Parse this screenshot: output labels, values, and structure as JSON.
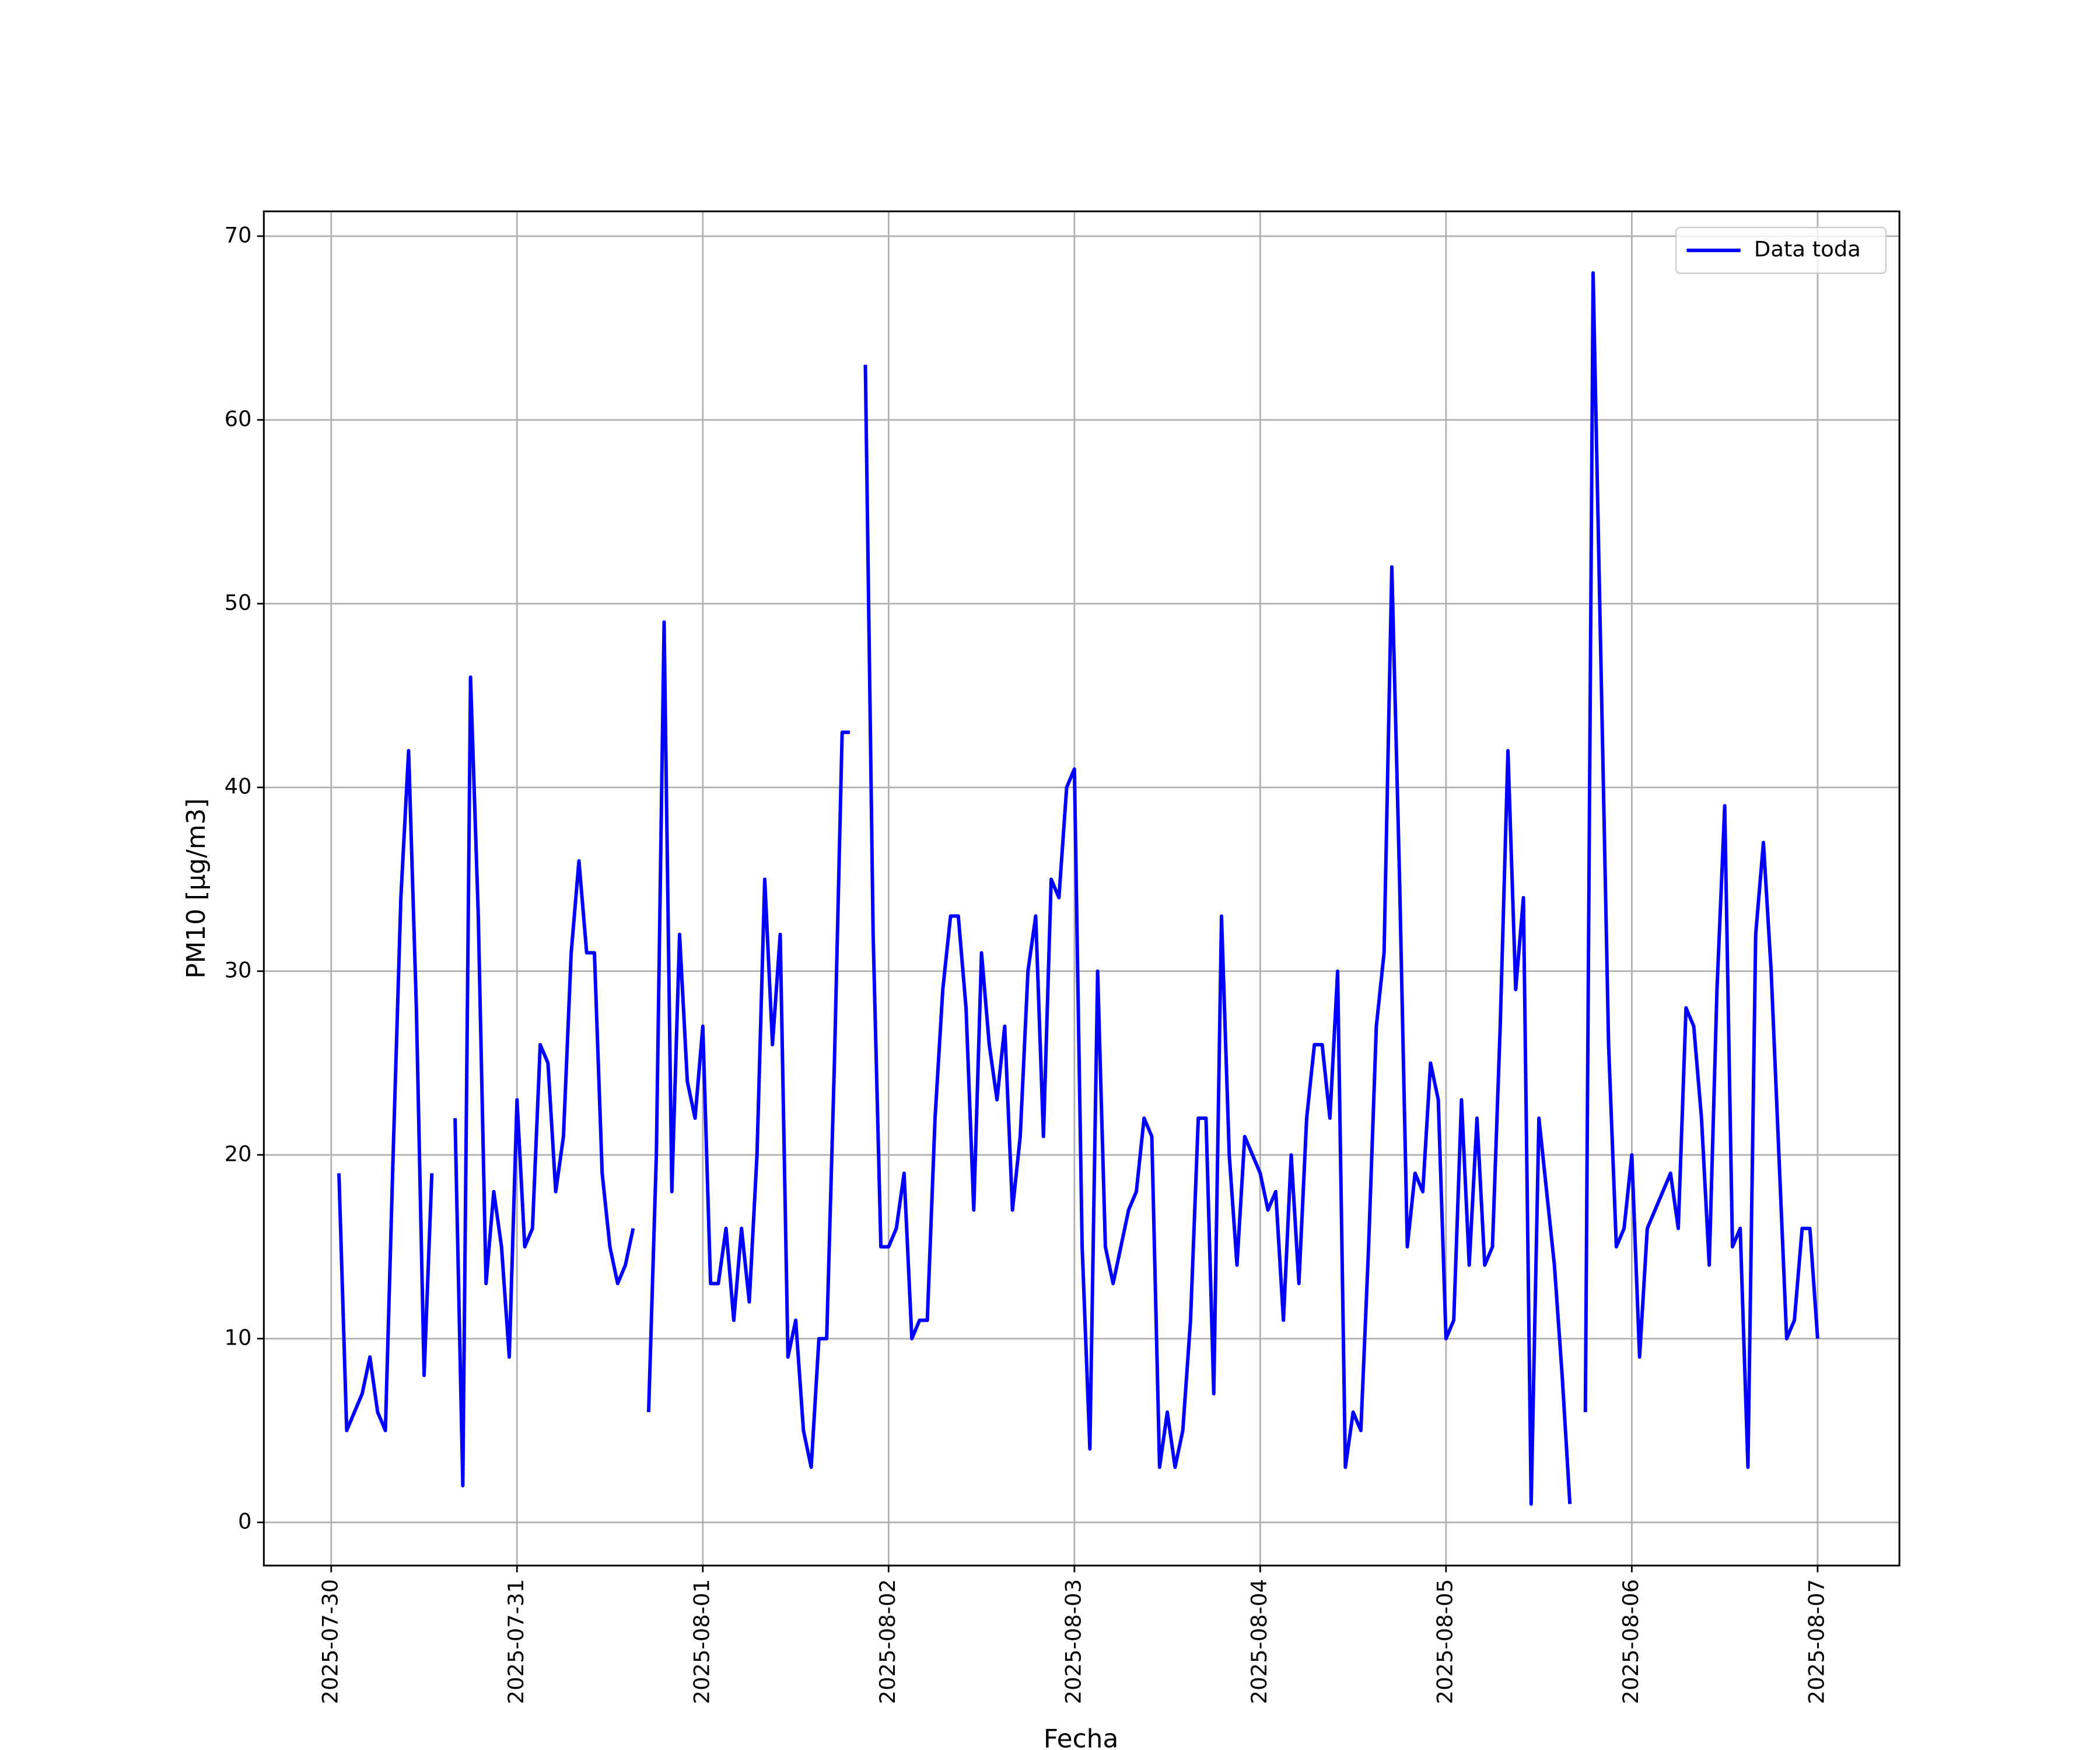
{
  "chart_data": {
    "type": "line",
    "xlabel": "Fecha",
    "ylabel": "PM10 [μg/m3]",
    "x": [
      "2025-07-30T01:00",
      "2025-07-30T02:00",
      "2025-07-30T03:00",
      "2025-07-30T04:00",
      "2025-07-30T05:00",
      "2025-07-30T06:00",
      "2025-07-30T07:00",
      "2025-07-30T08:00",
      "2025-07-30T09:00",
      "2025-07-30T10:00",
      "2025-07-30T11:00",
      "2025-07-30T12:00",
      "2025-07-30T13:00",
      "2025-07-30T14:00",
      "2025-07-30T15:00",
      "2025-07-30T16:00",
      "2025-07-30T17:00",
      "2025-07-30T18:00",
      "2025-07-30T19:00",
      "2025-07-30T20:00",
      "2025-07-30T21:00",
      "2025-07-30T22:00",
      "2025-07-30T23:00",
      "2025-07-31T00:00",
      "2025-07-31T01:00",
      "2025-07-31T02:00",
      "2025-07-31T03:00",
      "2025-07-31T04:00",
      "2025-07-31T05:00",
      "2025-07-31T06:00",
      "2025-07-31T07:00",
      "2025-07-31T08:00",
      "2025-07-31T09:00",
      "2025-07-31T10:00",
      "2025-07-31T11:00",
      "2025-07-31T12:00",
      "2025-07-31T13:00",
      "2025-07-31T14:00",
      "2025-07-31T15:00",
      "2025-07-31T16:00",
      "2025-07-31T17:00",
      "2025-07-31T18:00",
      "2025-07-31T19:00",
      "2025-07-31T20:00",
      "2025-07-31T21:00",
      "2025-07-31T22:00",
      "2025-07-31T23:00",
      "2025-08-01T00:00",
      "2025-08-01T01:00",
      "2025-08-01T02:00",
      "2025-08-01T03:00",
      "2025-08-01T04:00",
      "2025-08-01T05:00",
      "2025-08-01T06:00",
      "2025-08-01T07:00",
      "2025-08-01T08:00",
      "2025-08-01T09:00",
      "2025-08-01T10:00",
      "2025-08-01T11:00",
      "2025-08-01T12:00",
      "2025-08-01T13:00",
      "2025-08-01T14:00",
      "2025-08-01T15:00",
      "2025-08-01T16:00",
      "2025-08-01T17:00",
      "2025-08-01T18:00",
      "2025-08-01T19:00",
      "2025-08-01T20:00",
      "2025-08-01T21:00",
      "2025-08-01T22:00",
      "2025-08-01T23:00",
      "2025-08-02T00:00",
      "2025-08-02T01:00",
      "2025-08-02T02:00",
      "2025-08-02T03:00",
      "2025-08-02T04:00",
      "2025-08-02T05:00",
      "2025-08-02T06:00",
      "2025-08-02T07:00",
      "2025-08-02T08:00",
      "2025-08-02T09:00",
      "2025-08-02T10:00",
      "2025-08-02T11:00",
      "2025-08-02T12:00",
      "2025-08-02T13:00",
      "2025-08-02T14:00",
      "2025-08-02T15:00",
      "2025-08-02T16:00",
      "2025-08-02T17:00",
      "2025-08-02T18:00",
      "2025-08-02T19:00",
      "2025-08-02T20:00",
      "2025-08-02T21:00",
      "2025-08-02T22:00",
      "2025-08-02T23:00",
      "2025-08-03T00:00",
      "2025-08-03T01:00",
      "2025-08-03T02:00",
      "2025-08-03T03:00",
      "2025-08-03T04:00",
      "2025-08-03T05:00",
      "2025-08-03T06:00",
      "2025-08-03T07:00",
      "2025-08-03T08:00",
      "2025-08-03T09:00",
      "2025-08-03T10:00",
      "2025-08-03T11:00",
      "2025-08-03T12:00",
      "2025-08-03T13:00",
      "2025-08-03T14:00",
      "2025-08-03T15:00",
      "2025-08-03T16:00",
      "2025-08-03T17:00",
      "2025-08-03T18:00",
      "2025-08-03T19:00",
      "2025-08-03T20:00",
      "2025-08-03T21:00",
      "2025-08-03T22:00",
      "2025-08-03T23:00",
      "2025-08-04T00:00",
      "2025-08-04T01:00",
      "2025-08-04T02:00",
      "2025-08-04T03:00",
      "2025-08-04T04:00",
      "2025-08-04T05:00",
      "2025-08-04T06:00",
      "2025-08-04T07:00",
      "2025-08-04T08:00",
      "2025-08-04T09:00",
      "2025-08-04T10:00",
      "2025-08-04T11:00",
      "2025-08-04T12:00",
      "2025-08-04T13:00",
      "2025-08-04T14:00",
      "2025-08-04T15:00",
      "2025-08-04T16:00",
      "2025-08-04T17:00",
      "2025-08-04T18:00",
      "2025-08-04T19:00",
      "2025-08-04T20:00",
      "2025-08-04T21:00",
      "2025-08-04T22:00",
      "2025-08-04T23:00",
      "2025-08-05T00:00",
      "2025-08-05T01:00",
      "2025-08-05T02:00",
      "2025-08-05T03:00",
      "2025-08-05T04:00",
      "2025-08-05T05:00",
      "2025-08-05T06:00",
      "2025-08-05T07:00",
      "2025-08-05T08:00",
      "2025-08-05T09:00",
      "2025-08-05T10:00",
      "2025-08-05T11:00",
      "2025-08-05T12:00",
      "2025-08-05T13:00",
      "2025-08-05T14:00",
      "2025-08-05T15:00",
      "2025-08-05T16:00",
      "2025-08-05T17:00",
      "2025-08-05T18:00",
      "2025-08-05T19:00",
      "2025-08-05T20:00",
      "2025-08-05T21:00",
      "2025-08-05T22:00",
      "2025-08-05T23:00",
      "2025-08-06T00:00",
      "2025-08-06T01:00",
      "2025-08-06T02:00",
      "2025-08-06T03:00",
      "2025-08-06T04:00",
      "2025-08-06T05:00",
      "2025-08-06T06:00",
      "2025-08-06T07:00",
      "2025-08-06T08:00",
      "2025-08-06T09:00",
      "2025-08-06T10:00",
      "2025-08-06T11:00",
      "2025-08-06T12:00",
      "2025-08-06T13:00",
      "2025-08-06T14:00",
      "2025-08-06T15:00",
      "2025-08-06T16:00",
      "2025-08-06T17:00",
      "2025-08-06T18:00",
      "2025-08-06T19:00",
      "2025-08-06T20:00",
      "2025-08-06T21:00",
      "2025-08-06T22:00",
      "2025-08-06T23:00",
      "2025-08-07T00:00"
    ],
    "series": [
      {
        "name": "Data toda",
        "color": "#0000ff",
        "values": [
          19,
          5,
          6,
          7,
          9,
          6,
          5,
          20,
          34,
          42,
          28,
          8,
          19,
          null,
          null,
          22,
          2,
          46,
          33,
          13,
          18,
          15,
          9,
          23,
          15,
          16,
          26,
          25,
          18,
          21,
          31,
          36,
          31,
          31,
          19,
          15,
          13,
          14,
          16,
          null,
          6,
          20,
          49,
          18,
          32,
          24,
          22,
          27,
          13,
          13,
          16,
          11,
          16,
          12,
          20,
          35,
          26,
          32,
          9,
          11,
          5,
          3,
          10,
          10,
          25,
          43,
          43,
          null,
          63,
          32,
          15,
          15,
          16,
          19,
          10,
          11,
          11,
          22,
          29,
          33,
          33,
          28,
          17,
          31,
          26,
          23,
          27,
          17,
          21,
          30,
          33,
          21,
          35,
          34,
          40,
          41,
          15,
          4,
          30,
          15,
          13,
          15,
          17,
          18,
          22,
          21,
          3,
          6,
          3,
          5,
          11,
          22,
          22,
          7,
          33,
          20,
          14,
          21,
          20,
          19,
          17,
          18,
          11,
          20,
          13,
          22,
          26,
          26,
          22,
          30,
          3,
          6,
          5,
          15,
          27,
          31,
          52,
          35,
          15,
          19,
          18,
          25,
          23,
          10,
          11,
          23,
          14,
          22,
          14,
          15,
          27,
          42,
          29,
          34,
          1,
          22,
          18,
          14,
          8,
          1,
          null,
          6,
          68,
          47,
          26,
          15,
          16,
          20,
          9,
          16,
          17,
          18,
          19,
          16,
          28,
          27,
          22,
          14,
          29,
          39,
          15,
          16,
          3,
          32,
          37,
          30,
          20,
          10,
          11,
          16,
          16,
          10
        ]
      }
    ],
    "xlim": [
      "2025-07-29T15:18",
      "2025-08-07T10:34"
    ],
    "xticks": [
      "2025-07-30",
      "2025-07-31",
      "2025-08-01",
      "2025-08-02",
      "2025-08-03",
      "2025-08-04",
      "2025-08-05",
      "2025-08-06",
      "2025-08-07"
    ],
    "ylim": [
      -2.35,
      71.35
    ],
    "yticks": [
      0,
      10,
      20,
      30,
      40,
      50,
      60,
      70
    ],
    "grid": true,
    "legend": "upper right"
  }
}
